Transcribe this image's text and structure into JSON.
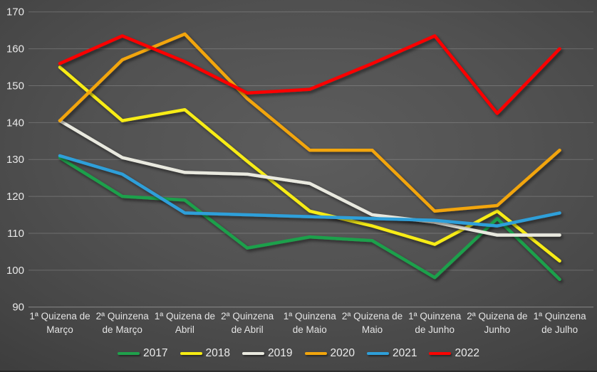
{
  "chart_data": {
    "type": "line",
    "title": "",
    "xlabel": "",
    "ylabel": "",
    "ylim": [
      90,
      170
    ],
    "ytick_step": 10,
    "grid": true,
    "legend_position": "bottom",
    "categories": [
      "1ª Quizena de\nMarço",
      "2ª Quinzena\nde Março",
      "1ª Quizena de\nAbril",
      "2ª Quinzena\nde Abril",
      "1ª Quinzena\nde Maio",
      "2ª Quizena de\nMaio",
      "1ª Quinzena\nde Junho",
      "2ª Quizena de\nJunho",
      "1ª Quinzena\nde Julho"
    ],
    "series": [
      {
        "name": "2017",
        "color": "#1fa04b",
        "values": [
          130.5,
          120,
          119,
          106,
          109,
          108,
          98,
          114,
          97.5
        ]
      },
      {
        "name": "2018",
        "color": "#f7ec13",
        "values": [
          155,
          140.5,
          143.5,
          129.5,
          116,
          112,
          107,
          116,
          102.5
        ]
      },
      {
        "name": "2019",
        "color": "#e9e9df",
        "values": [
          140.5,
          130.5,
          126.5,
          126,
          123.5,
          115,
          113,
          109.5,
          109.5
        ]
      },
      {
        "name": "2020",
        "color": "#f2a50c",
        "values": [
          140.5,
          157,
          164,
          146.5,
          132.5,
          132.5,
          116,
          117.5,
          132.5
        ]
      },
      {
        "name": "2021",
        "color": "#2e9fd9",
        "values": [
          131,
          126,
          115.5,
          115,
          114.5,
          114,
          113.5,
          112,
          115.5
        ]
      },
      {
        "name": "2022",
        "color": "#fb0402",
        "values": [
          156,
          163.5,
          156.5,
          148,
          149,
          156,
          163.5,
          142.5,
          160
        ]
      }
    ]
  },
  "style_colors": {
    "background_center": "#5d5d5d",
    "background_edge": "#2a2a2a",
    "gridline": "#e6e6e6",
    "axis_text": "#e8e8e8"
  }
}
